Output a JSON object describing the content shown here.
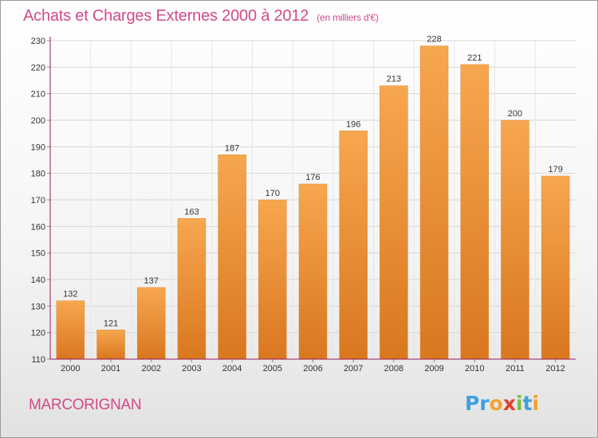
{
  "title": "Achats et Charges Externes 2000 à 2012",
  "subtitle": "(en milliers d'€)",
  "place": "MARCORIGNAN",
  "logo": {
    "letters": [
      "P",
      "r",
      "o",
      "x",
      "i",
      "t",
      "i"
    ],
    "colors": [
      "#3fa0dc",
      "#3fa0dc",
      "#f2a232",
      "#e0402a",
      "#7ac142",
      "#3fa0dc",
      "#f2a232"
    ]
  },
  "colors": {
    "bar_top": "#f7a74f",
    "bar_bottom": "#d9771f",
    "title": "#d24a8a",
    "axis": "#9a1a5a"
  },
  "chart_data": {
    "type": "bar",
    "title": "Achats et Charges Externes 2000 à 2012",
    "subtitle": "(en milliers d'€)",
    "categories": [
      "2000",
      "2001",
      "2002",
      "2003",
      "2004",
      "2005",
      "2006",
      "2007",
      "2008",
      "2009",
      "2010",
      "2011",
      "2012"
    ],
    "values": [
      132,
      121,
      137,
      163,
      187,
      170,
      176,
      196,
      213,
      228,
      221,
      200,
      179
    ],
    "ylim": [
      110,
      230
    ],
    "yticks": [
      110,
      120,
      130,
      140,
      150,
      160,
      170,
      180,
      190,
      200,
      210,
      220,
      230
    ],
    "grid": true,
    "xlabel": "",
    "ylabel": ""
  }
}
